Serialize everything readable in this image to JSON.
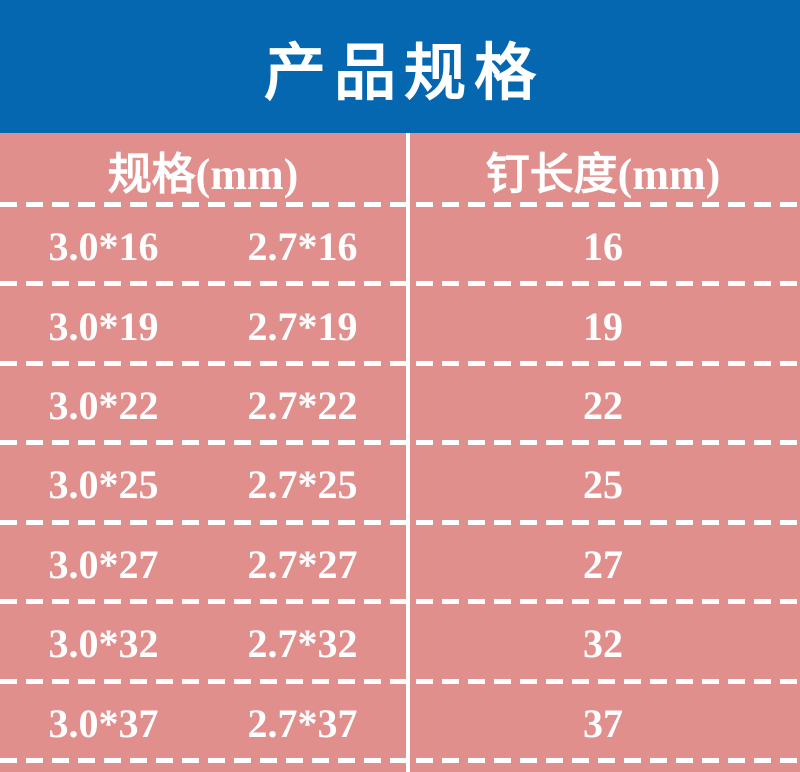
{
  "header": {
    "title": "产品规格"
  },
  "colors": {
    "header_bg": "#0667b1",
    "table_bg": "#e08f8c",
    "text": "#ffffff",
    "divider": "#ffffff"
  },
  "table": {
    "columns": [
      {
        "label": "规格(mm)"
      },
      {
        "label": "钉长度(mm)"
      }
    ],
    "rows": [
      {
        "spec_a": "3.0*16",
        "spec_b": "2.7*16",
        "length": "16"
      },
      {
        "spec_a": "3.0*19",
        "spec_b": "2.7*19",
        "length": "19"
      },
      {
        "spec_a": "3.0*22",
        "spec_b": "2.7*22",
        "length": "22"
      },
      {
        "spec_a": "3.0*25",
        "spec_b": "2.7*25",
        "length": "25"
      },
      {
        "spec_a": "3.0*27",
        "spec_b": "2.7*27",
        "length": "27"
      },
      {
        "spec_a": "3.0*32",
        "spec_b": "2.7*32",
        "length": "32"
      },
      {
        "spec_a": "3.0*37",
        "spec_b": "2.7*37",
        "length": "37"
      }
    ]
  }
}
